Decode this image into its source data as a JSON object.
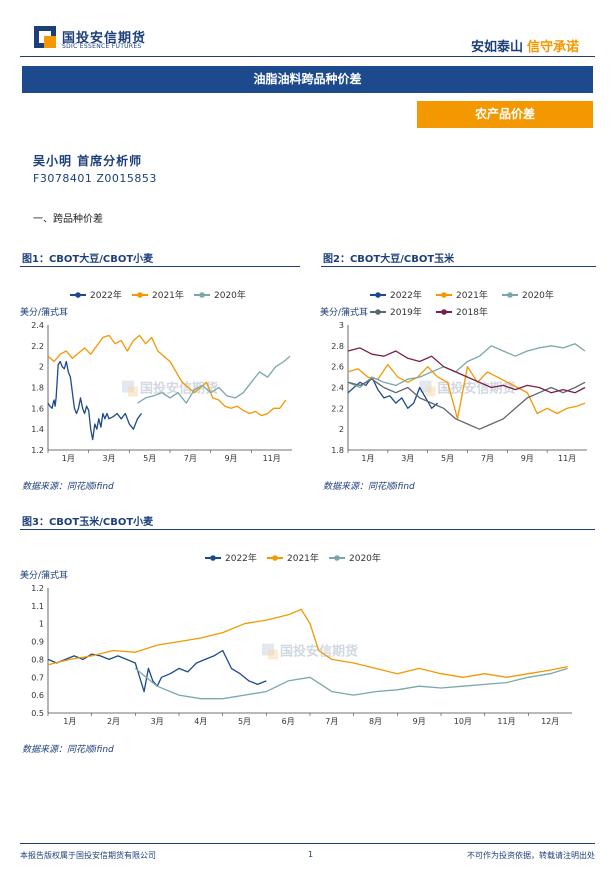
{
  "header": {
    "logo_cn": "国投安信期货",
    "logo_en": "SDIC ESSENCE FUTURES",
    "slogan_a": "安如泰山",
    "slogan_b": "信守承诺"
  },
  "banner_title": "油脂油料跨品种价差",
  "category_tag": "农产品价差",
  "author": {
    "name": "吴小明 首席分析师",
    "cert": "F3078401 Z0015853"
  },
  "section_heading": "一、跨品种价差",
  "colors": {
    "2022": "#1c4a8c",
    "2021": "#f39800",
    "2020": "#7aa7a8",
    "2019": "#5f6670",
    "2018": "#7b1e47",
    "brand": "#1c3f7a"
  },
  "watermark": "国投安信期货",
  "charts": [
    {
      "title": "图1：CBOT大豆/CBOT小麦",
      "source": "数据来源：同花顺ifind",
      "chart_data": {
        "type": "line",
        "ylabel": "美分/蒲式耳",
        "ylim": [
          1.2,
          2.4
        ],
        "yticks": [
          "1.2",
          "1.4",
          "1.6",
          "1.8",
          "2",
          "2.2",
          "2.4"
        ],
        "xticks": [
          "1月",
          "3月",
          "5月",
          "7月",
          "9月",
          "11月"
        ],
        "series": [
          {
            "name": "2022年",
            "color_key": "2022",
            "x": [
              0,
              0.1,
              0.2,
              0.25,
              0.3,
              0.35,
              0.4,
              0.45,
              0.5,
              0.6,
              0.7,
              0.8,
              0.9,
              1.0,
              1.1,
              1.2,
              1.3,
              1.4,
              1.5,
              1.6,
              1.7,
              1.8,
              1.9,
              2.0,
              2.1,
              2.2,
              2.3,
              2.4,
              2.5,
              2.6,
              2.7,
              2.8,
              2.9,
              3.0,
              3.2,
              3.4,
              3.6,
              3.8,
              4.0,
              4.2,
              4.4,
              4.6
            ],
            "y": [
              1.65,
              1.62,
              1.6,
              1.65,
              1.68,
              1.62,
              1.7,
              1.85,
              2.02,
              2.05,
              2.0,
              1.98,
              2.05,
              1.95,
              1.9,
              1.75,
              1.6,
              1.55,
              1.6,
              1.7,
              1.6,
              1.55,
              1.62,
              1.58,
              1.4,
              1.3,
              1.45,
              1.4,
              1.5,
              1.42,
              1.55,
              1.5,
              1.55,
              1.5,
              1.52,
              1.55,
              1.5,
              1.55,
              1.45,
              1.4,
              1.5,
              1.55
            ]
          },
          {
            "name": "2021年",
            "color_key": "2021",
            "x": [
              0,
              0.3,
              0.6,
              0.9,
              1.2,
              1.5,
              1.8,
              2.1,
              2.4,
              2.7,
              3.0,
              3.3,
              3.6,
              3.9,
              4.2,
              4.5,
              4.8,
              5.1,
              5.4,
              5.7,
              6.0,
              6.3,
              6.6,
              6.9,
              7.2,
              7.5,
              7.8,
              8.1,
              8.4,
              8.7,
              9.0,
              9.3,
              9.6,
              9.9,
              10.2,
              10.5,
              10.8,
              11.1,
              11.4,
              11.7
            ],
            "y": [
              2.1,
              2.05,
              2.12,
              2.15,
              2.08,
              2.13,
              2.18,
              2.12,
              2.2,
              2.28,
              2.3,
              2.22,
              2.25,
              2.15,
              2.25,
              2.3,
              2.22,
              2.28,
              2.15,
              2.1,
              2.05,
              1.95,
              1.85,
              1.8,
              1.75,
              1.8,
              1.85,
              1.7,
              1.68,
              1.62,
              1.6,
              1.62,
              1.58,
              1.55,
              1.57,
              1.53,
              1.55,
              1.6,
              1.6,
              1.68
            ]
          },
          {
            "name": "2020年",
            "color_key": "2020",
            "x": [
              4.4,
              4.8,
              5.2,
              5.6,
              6.0,
              6.4,
              6.8,
              7.2,
              7.6,
              8.0,
              8.4,
              8.8,
              9.2,
              9.6,
              10.0,
              10.4,
              10.8,
              11.2,
              11.6,
              11.9
            ],
            "y": [
              1.65,
              1.7,
              1.72,
              1.75,
              1.7,
              1.75,
              1.65,
              1.78,
              1.82,
              1.75,
              1.8,
              1.72,
              1.7,
              1.75,
              1.85,
              1.95,
              1.9,
              2.0,
              2.05,
              2.1
            ]
          }
        ]
      }
    },
    {
      "title": "图2：CBOT大豆/CBOT玉米",
      "source": "数据来源：同花顺ifind",
      "chart_data": {
        "type": "line",
        "ylabel": "美分/蒲式耳",
        "ylim": [
          1.8,
          3.0
        ],
        "yticks": [
          "1.8",
          "2",
          "2.2",
          "2.4",
          "2.6",
          "2.8",
          "3"
        ],
        "xticks": [
          "1月",
          "3月",
          "5月",
          "7月",
          "9月",
          "11月"
        ],
        "series": [
          {
            "name": "2022年",
            "color_key": "2022",
            "x": [
              0,
              0.3,
              0.6,
              0.9,
              1.2,
              1.5,
              1.8,
              2.1,
              2.4,
              2.7,
              3.0,
              3.3,
              3.6,
              3.9,
              4.2,
              4.5
            ],
            "y": [
              2.35,
              2.4,
              2.45,
              2.42,
              2.5,
              2.38,
              2.3,
              2.32,
              2.25,
              2.3,
              2.2,
              2.25,
              2.4,
              2.3,
              2.2,
              2.25
            ]
          },
          {
            "name": "2021年",
            "color_key": "2021",
            "x": [
              0,
              0.5,
              1.0,
              1.5,
              2.0,
              2.5,
              3.0,
              3.5,
              4.0,
              4.5,
              5.0,
              5.5,
              6.0,
              6.5,
              7.0,
              7.5,
              8.0,
              8.5,
              9.0,
              9.5,
              10.0,
              10.5,
              11.0,
              11.5,
              11.9
            ],
            "y": [
              2.55,
              2.58,
              2.5,
              2.48,
              2.62,
              2.5,
              2.45,
              2.5,
              2.6,
              2.5,
              2.45,
              2.1,
              2.6,
              2.45,
              2.55,
              2.5,
              2.45,
              2.4,
              2.35,
              2.15,
              2.2,
              2.15,
              2.2,
              2.22,
              2.25
            ]
          },
          {
            "name": "2020年",
            "color_key": "2020",
            "x": [
              0,
              0.6,
              1.2,
              1.8,
              2.4,
              3.0,
              3.6,
              4.2,
              4.8,
              5.4,
              6.0,
              6.6,
              7.2,
              7.8,
              8.4,
              9.0,
              9.6,
              10.2,
              10.8,
              11.4,
              11.9
            ],
            "y": [
              2.45,
              2.4,
              2.5,
              2.45,
              2.42,
              2.48,
              2.5,
              2.55,
              2.6,
              2.55,
              2.65,
              2.7,
              2.8,
              2.75,
              2.7,
              2.75,
              2.78,
              2.8,
              2.78,
              2.82,
              2.75
            ]
          },
          {
            "name": "2019年",
            "color_key": "2019",
            "x": [
              0,
              0.6,
              1.2,
              1.8,
              2.4,
              3.0,
              3.6,
              4.2,
              4.8,
              5.4,
              6.0,
              6.6,
              7.2,
              7.8,
              8.4,
              9.0,
              9.6,
              10.2,
              10.8,
              11.4,
              11.9
            ],
            "y": [
              2.45,
              2.42,
              2.48,
              2.4,
              2.35,
              2.4,
              2.3,
              2.25,
              2.2,
              2.1,
              2.05,
              2.0,
              2.05,
              2.1,
              2.2,
              2.3,
              2.35,
              2.4,
              2.35,
              2.4,
              2.45
            ]
          },
          {
            "name": "2018年",
            "color_key": "2018",
            "x": [
              0,
              0.6,
              1.2,
              1.8,
              2.4,
              3.0,
              3.6,
              4.2,
              4.8,
              5.4,
              6.0,
              6.6,
              7.2,
              7.8,
              8.4,
              9.0,
              9.6,
              10.2,
              10.8,
              11.4,
              11.9
            ],
            "y": [
              2.75,
              2.78,
              2.72,
              2.7,
              2.75,
              2.68,
              2.65,
              2.7,
              2.6,
              2.55,
              2.5,
              2.45,
              2.4,
              2.42,
              2.38,
              2.42,
              2.4,
              2.35,
              2.38,
              2.35,
              2.4
            ]
          }
        ]
      }
    },
    {
      "title": "图3：CBOT玉米/CBOT小麦",
      "source": "数据来源：同花顺ifind",
      "chart_data": {
        "type": "line",
        "ylabel": "美分/蒲式耳",
        "ylim": [
          0.5,
          1.2
        ],
        "yticks": [
          "0.5",
          "0.6",
          "0.7",
          "0.8",
          "0.9",
          "1",
          "1.1",
          "1.2"
        ],
        "xticks": [
          "1月",
          "2月",
          "3月",
          "4月",
          "5月",
          "6月",
          "7月",
          "8月",
          "9月",
          "10月",
          "11月",
          "12月"
        ],
        "series": [
          {
            "name": "2022年",
            "color_key": "2022",
            "x": [
              0,
              0.2,
              0.4,
              0.6,
              0.8,
              1.0,
              1.2,
              1.4,
              1.6,
              1.8,
              2.0,
              2.1,
              2.2,
              2.3,
              2.4,
              2.5,
              2.6,
              2.8,
              3.0,
              3.2,
              3.4,
              3.6,
              3.8,
              4.0,
              4.2,
              4.4,
              4.6,
              4.8,
              5.0
            ],
            "y": [
              0.8,
              0.78,
              0.8,
              0.82,
              0.8,
              0.83,
              0.82,
              0.8,
              0.82,
              0.8,
              0.78,
              0.7,
              0.62,
              0.75,
              0.68,
              0.65,
              0.7,
              0.72,
              0.75,
              0.73,
              0.78,
              0.8,
              0.82,
              0.85,
              0.75,
              0.72,
              0.68,
              0.66,
              0.68
            ]
          },
          {
            "name": "2021年",
            "color_key": "2021",
            "x": [
              0,
              0.5,
              1.0,
              1.5,
              2.0,
              2.5,
              3.0,
              3.5,
              4.0,
              4.5,
              5.0,
              5.5,
              5.8,
              6.0,
              6.2,
              6.5,
              7.0,
              7.5,
              8.0,
              8.5,
              9.0,
              9.5,
              10.0,
              10.5,
              11.0,
              11.5,
              11.9
            ],
            "y": [
              0.77,
              0.8,
              0.82,
              0.85,
              0.84,
              0.88,
              0.9,
              0.92,
              0.95,
              1.0,
              1.02,
              1.05,
              1.08,
              1.0,
              0.85,
              0.8,
              0.78,
              0.75,
              0.72,
              0.75,
              0.72,
              0.7,
              0.72,
              0.7,
              0.72,
              0.74,
              0.76
            ]
          },
          {
            "name": "2020年",
            "color_key": "2020",
            "x": [
              2.0,
              2.5,
              3.0,
              3.5,
              4.0,
              4.5,
              5.0,
              5.5,
              6.0,
              6.5,
              7.0,
              7.5,
              8.0,
              8.5,
              9.0,
              9.5,
              10.0,
              10.5,
              11.0,
              11.5,
              11.9
            ],
            "y": [
              0.75,
              0.65,
              0.6,
              0.58,
              0.58,
              0.6,
              0.62,
              0.68,
              0.7,
              0.62,
              0.6,
              0.62,
              0.63,
              0.65,
              0.64,
              0.65,
              0.66,
              0.67,
              0.7,
              0.72,
              0.75
            ]
          }
        ]
      }
    }
  ],
  "footer": {
    "copyright": "本报告版权属于国投安信期货有限公司",
    "page": "1",
    "disclaimer": "不可作为投资依据，转载请注明出处"
  }
}
